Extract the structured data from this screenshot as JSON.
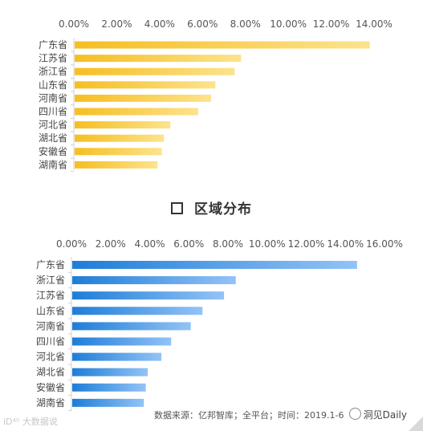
{
  "section": {
    "title": "区域分布"
  },
  "chart_data": [
    {
      "type": "bar",
      "orientation": "horizontal",
      "categories": [
        "广东省",
        "江苏省",
        "浙江省",
        "山东省",
        "河南省",
        "四川省",
        "河北省",
        "湖北省",
        "安徽省",
        "湖南省"
      ],
      "values": [
        13.8,
        7.8,
        7.5,
        6.6,
        6.4,
        5.8,
        4.5,
        4.2,
        4.1,
        3.9
      ],
      "xlim": [
        0,
        14
      ],
      "ticks": [
        0,
        2,
        4,
        6,
        8,
        10,
        12,
        14
      ],
      "tick_labels": [
        "0.00%",
        "2.00%",
        "4.00%",
        "6.00%",
        "8.00%",
        "10.00%",
        "12.00%",
        "14.00%"
      ],
      "axis_position": "top",
      "grid": false,
      "colors": {
        "bar_start": "#F6BE21",
        "bar_end": "#FCE38C"
      }
    },
    {
      "type": "bar",
      "orientation": "horizontal",
      "categories": [
        "广东省",
        "浙江省",
        "江苏省",
        "山东省",
        "河南省",
        "四川省",
        "河北省",
        "湖北省",
        "安徽省",
        "湖南省"
      ],
      "values": [
        14.6,
        8.4,
        7.8,
        6.7,
        6.1,
        5.1,
        4.6,
        3.9,
        3.8,
        3.7
      ],
      "xlim": [
        0,
        16
      ],
      "ticks": [
        0,
        2,
        4,
        6,
        8,
        10,
        12,
        14,
        16
      ],
      "tick_labels": [
        "0.00%",
        "2.00%",
        "4.00%",
        "6.00%",
        "8.00%",
        "10.00%",
        "12.00%",
        "14.00%",
        "16.00%"
      ],
      "axis_position": "top",
      "grid": false,
      "colors": {
        "bar_start": "#1E7DD8",
        "bar_end": "#93C3F6"
      }
    }
  ],
  "footer": {
    "source": "数据来源：亿邦智库；全平台；时间：2019.1-6",
    "brand": "洞见Daily",
    "watermark": "iD⁴⁰ 大数据说"
  }
}
